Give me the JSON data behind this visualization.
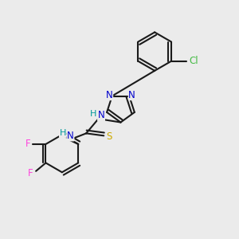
{
  "background_color": "#ebebeb",
  "bond_color": "#1a1a1a",
  "atom_colors": {
    "N": "#0000cc",
    "S": "#ccaa00",
    "F": "#ff44dd",
    "Cl": "#44bb44",
    "H": "#009999",
    "C": "#1a1a1a"
  },
  "bond_width": 1.5,
  "font_size": 8.5,
  "figsize": [
    3.0,
    3.0
  ],
  "dpi": 100
}
